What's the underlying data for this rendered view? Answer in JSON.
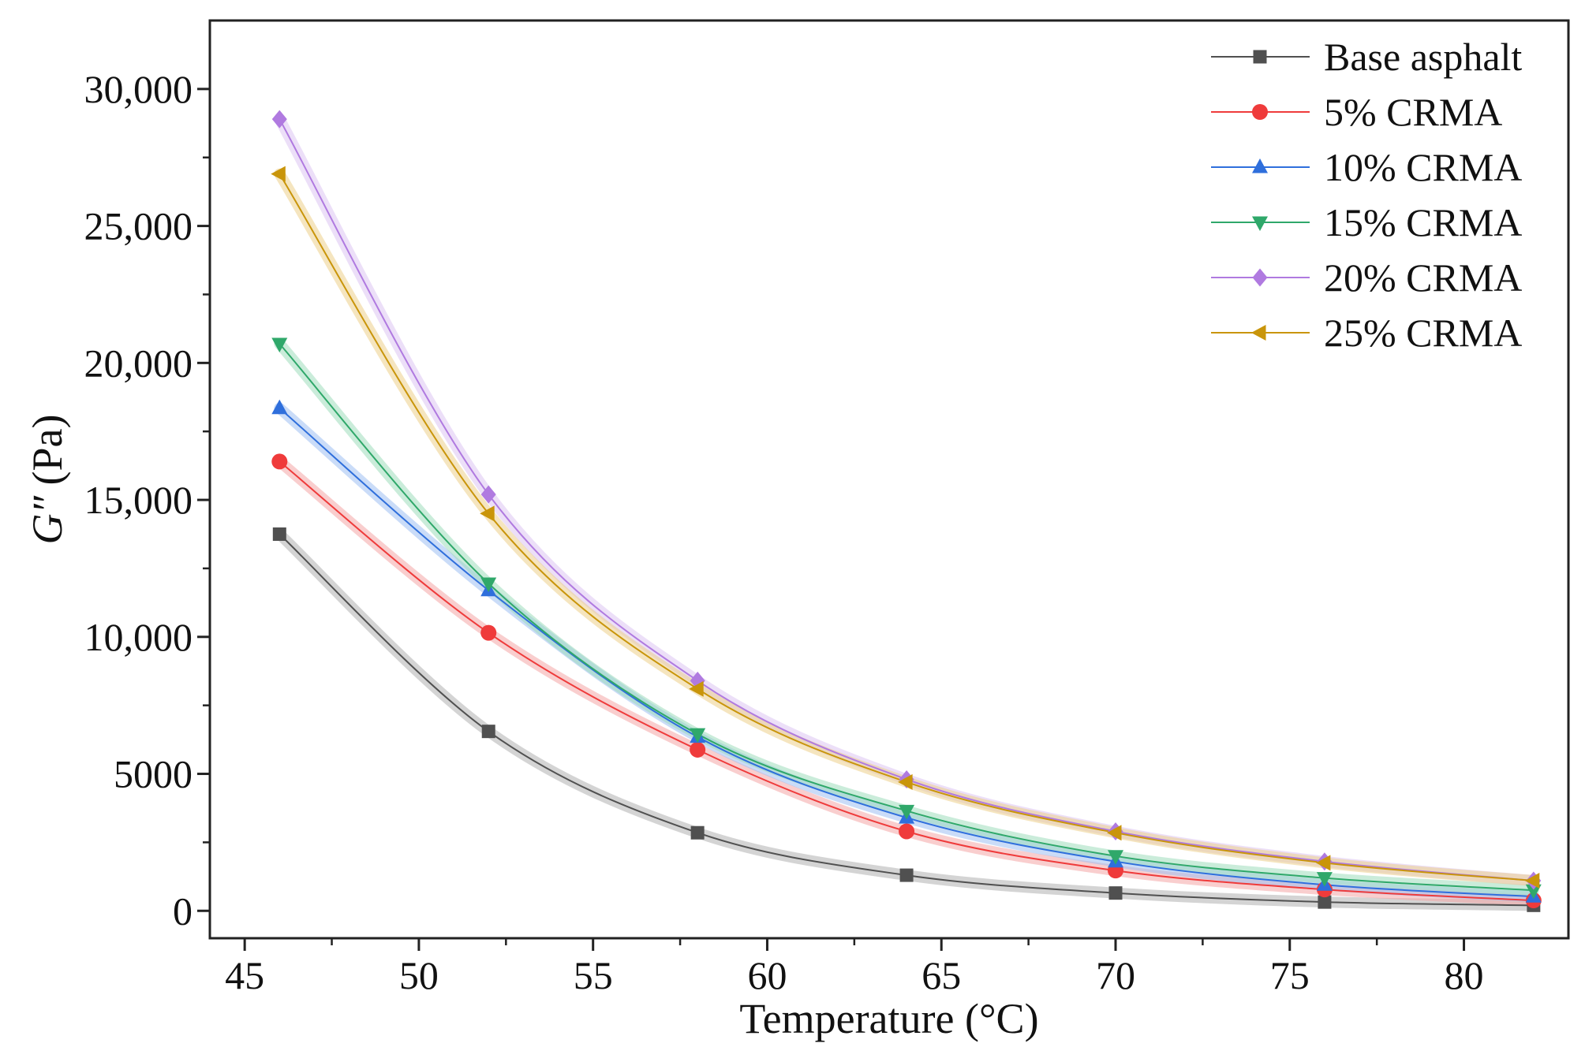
{
  "chart_data": {
    "type": "line",
    "title": "",
    "xlabel": "Temperature (°C)",
    "ylabel_italic": "G″",
    "ylabel_unit": " (Pa)",
    "xlim": [
      44,
      83
    ],
    "ylim": [
      -1000,
      32500
    ],
    "xticks": [
      45,
      50,
      55,
      60,
      65,
      70,
      75,
      80
    ],
    "xtick_labels": [
      "45",
      "50",
      "55",
      "60",
      "65",
      "70",
      "75",
      "80"
    ],
    "yticks": [
      0,
      5000,
      10000,
      15000,
      20000,
      25000,
      30000
    ],
    "ytick_labels": [
      "0",
      "5000",
      "10,000",
      "15,000",
      "20,000",
      "25,000",
      "30,000"
    ],
    "x": [
      46,
      52,
      58,
      64,
      70,
      76,
      82
    ],
    "legend_position": "top-right",
    "series": [
      {
        "name": "Base asphalt",
        "marker": "square",
        "color": "#505050",
        "band": "#b0b0b0",
        "values": [
          13750,
          6550,
          2850,
          1300,
          650,
          320,
          200
        ]
      },
      {
        "name": "5% CRMA",
        "marker": "circle",
        "color": "#ef3b3b",
        "band": "#f4a6a6",
        "values": [
          16400,
          10150,
          5880,
          2900,
          1470,
          780,
          380
        ]
      },
      {
        "name": "10% CRMA",
        "marker": "triangle-up",
        "color": "#2f6fdc",
        "band": "#9fc0f2",
        "values": [
          18350,
          11700,
          6350,
          3400,
          1800,
          950,
          520
        ]
      },
      {
        "name": "15% CRMA",
        "marker": "triangle-down",
        "color": "#2fa86a",
        "band": "#9fdcbc",
        "values": [
          20700,
          11950,
          6450,
          3650,
          2000,
          1200,
          750
        ]
      },
      {
        "name": "20% CRMA",
        "marker": "diamond",
        "color": "#b07ae0",
        "band": "#dcc4f2",
        "values": [
          28900,
          15200,
          8400,
          4800,
          2900,
          1800,
          1100
        ]
      },
      {
        "name": "25% CRMA",
        "marker": "triangle-left",
        "color": "#c9950a",
        "band": "#ecd08a",
        "values": [
          26900,
          14500,
          8100,
          4700,
          2850,
          1750,
          1100
        ]
      }
    ]
  }
}
